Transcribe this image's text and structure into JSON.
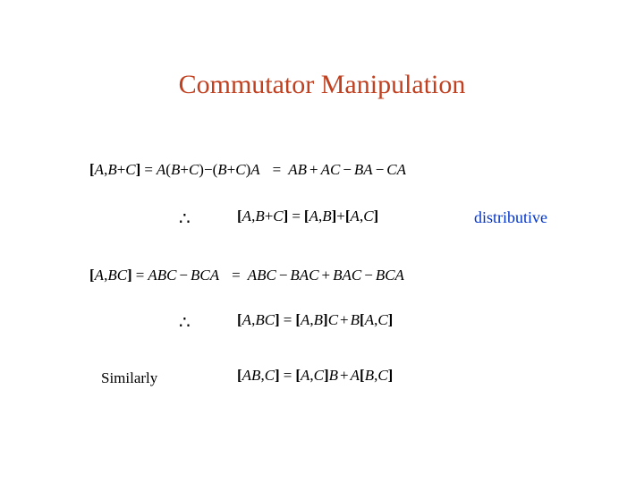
{
  "title": {
    "text": "Commutator Manipulation",
    "color": "#c04020",
    "fontsize": 30
  },
  "colors": {
    "text": "#000000",
    "accent": "#c04020",
    "note": "#0033cc",
    "background": "#ffffff"
  },
  "typography": {
    "serif": "Times New Roman",
    "math_italic": true,
    "base_fontsize": 17
  },
  "eq1": {
    "lhs": {
      "open": "[",
      "a": "A",
      "sep": ",",
      "sp": " ",
      "b": "B",
      "plus": "+",
      "c": "C",
      "close": "]"
    },
    "mid": {
      "eq": "=",
      "t1": "A",
      "lp": "(",
      "t2": "B",
      "pl": "+",
      "t3": "C",
      "rp": ")",
      "minus": "−",
      "lp2": "(",
      "t4": "B",
      "pl2": "+",
      "t5": "C",
      "rp2": ")",
      "t6": "A"
    },
    "rhs": {
      "eq": "=",
      "t1": "AB",
      "pl1": "+",
      "t2": "AC",
      "m1": "−",
      "t3": "BA",
      "m2": "−",
      "t4": "CA"
    }
  },
  "res1": {
    "therefore": "∴",
    "open": "[",
    "a": "A",
    "sep": ",",
    "b": "B",
    "plus": "+",
    "c": "C",
    "close": "]",
    "eq": "=",
    "open2": "[",
    "a2": "A",
    "sep2": ",",
    "b2": "B",
    "close2": "]",
    "plus2": "+",
    "open3": "[",
    "a3": "A",
    "sep3": ",",
    "c3": "C",
    "close3": "]"
  },
  "note1": {
    "text": "distributive",
    "color": "#0033cc"
  },
  "eq2": {
    "lhs": {
      "open": "[",
      "a": "A",
      "sep": ",",
      "sp": " ",
      "b": "B",
      "c": "C",
      "close": "]"
    },
    "mid": {
      "eq": "=",
      "t1": "ABC",
      "m": "−",
      "t2": "BCA"
    },
    "rhs": {
      "eq": "=",
      "t1": "ABC",
      "m1": "−",
      "t2": "BAC",
      "p1": "+",
      "t3": "BAC",
      "m2": "−",
      "t4": "BCA"
    }
  },
  "res2": {
    "therefore": "∴",
    "open": "[",
    "a": "A",
    "sep": ",",
    "bc": "BC",
    "close": "]",
    "eq": "=",
    "open2": "[",
    "a2": "A",
    "sep2": ",",
    "b2": "B",
    "close2": "]",
    "c2": "C",
    "plus": "+",
    "b3": "B",
    "open3": "[",
    "a3": "A",
    "sep3": ",",
    "c3": "C",
    "close3": "]"
  },
  "similarly": {
    "label": "Similarly"
  },
  "res3": {
    "open": "[",
    "ab": "AB",
    "sep": ",",
    "c": "C",
    "close": "]",
    "eq": "=",
    "open2": "[",
    "a2": "A",
    "sep2": ",",
    "c2": "C",
    "close2": "]",
    "b2": "B",
    "plus": "+",
    "a3": "A",
    "open3": "[",
    "b3": "B",
    "sep3": ",",
    "c3": "C",
    "close3": "]"
  }
}
